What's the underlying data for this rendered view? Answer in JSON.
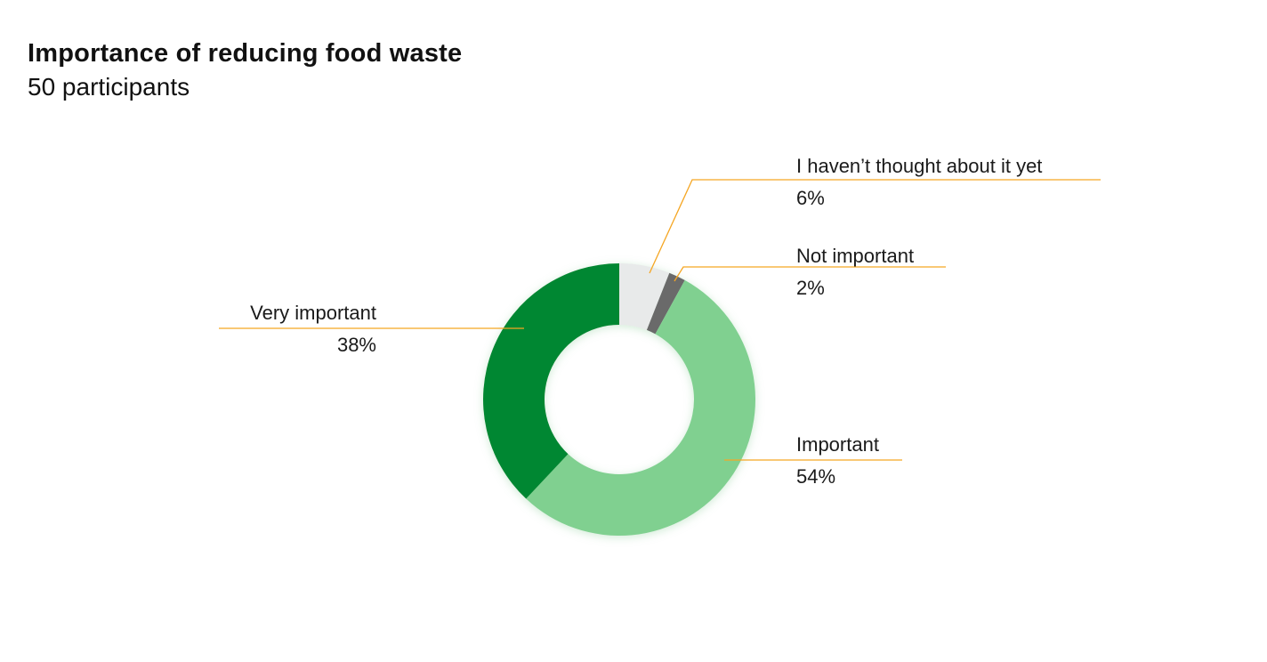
{
  "chart_data": {
    "type": "pie",
    "title": "Importance of reducing food waste",
    "subtitle": "50 participants",
    "slices": [
      {
        "label": "I haven’t thought about it yet",
        "value": 6,
        "display": "6%",
        "color": "#e8eaea"
      },
      {
        "label": "Not important",
        "value": 2,
        "display": "2%",
        "color": "#6b6b6b"
      },
      {
        "label": "Important",
        "value": 54,
        "display": "54%",
        "color": "#80d090"
      },
      {
        "label": "Very important",
        "value": 38,
        "display": "38%",
        "color": "#008732"
      }
    ],
    "donut": true,
    "leader_line_color": "#f5a623"
  }
}
